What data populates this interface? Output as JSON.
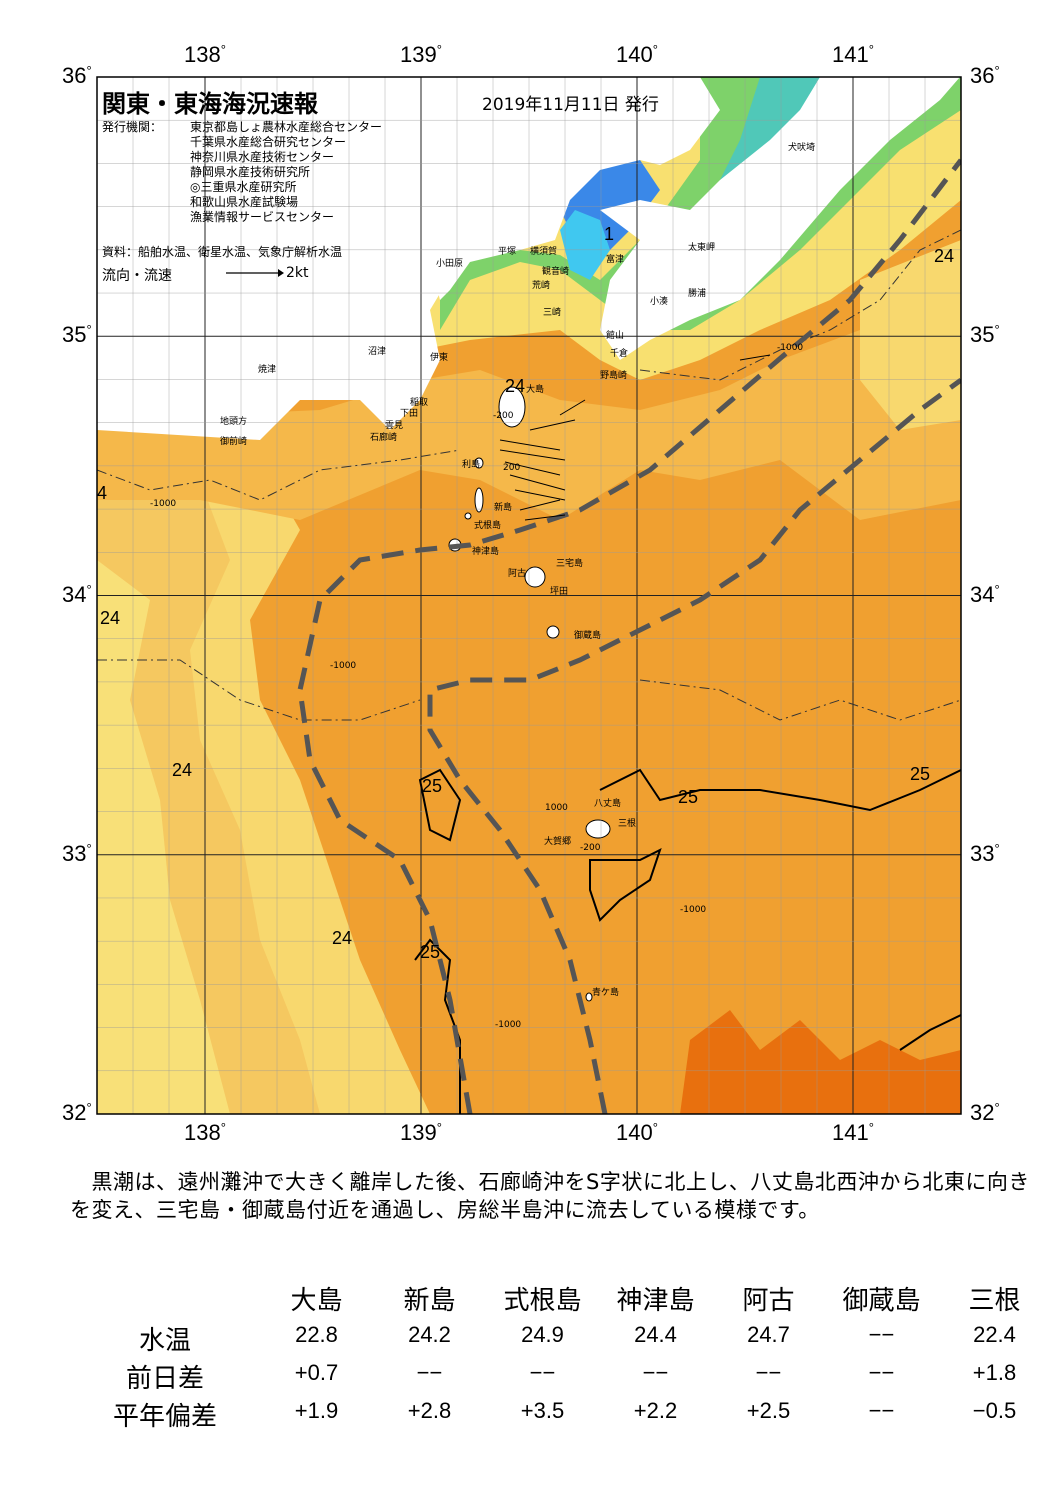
{
  "title": "関東・東海海況速報",
  "issue_date": "2019年11月11日 発行",
  "issuer_label": "発行機関：",
  "issuers": [
    "東京都島しょ農林水産総合センター",
    "千葉県水産総合研究センター",
    "神奈川県水産技術センター",
    "静岡県水産技術研究所",
    "◎三重県水産研究所",
    "和歌山県水産試験場",
    "漁業情報サービスセンター"
  ],
  "source": "資料：船舶水温、衛星水温、気象庁解析水温",
  "current_label": "流向・流速",
  "current_scale": "2kt",
  "axes": {
    "lon_labels": [
      "138",
      "139",
      "140",
      "141"
    ],
    "lat_labels": [
      "36",
      "35",
      "34",
      "33",
      "32"
    ],
    "degree": "°",
    "lon_range": [
      137.5,
      141.5
    ],
    "lat_range": [
      32,
      36
    ]
  },
  "place_labels": {
    "inubozaki": "犬吠埼",
    "taitomisaki": "太東岬",
    "katsuura": "勝浦",
    "kominato": "小湊",
    "futtsu": "富津",
    "tateyama": "館山",
    "chikura": "千倉",
    "nojimazaki": "野島崎",
    "odawara": "小田原",
    "hiratsuka": "平塚",
    "yokosuka": "横須賀",
    "kannonzaki": "観音崎",
    "arasaki": "荒崎",
    "misaki": "三崎",
    "numazu": "沼津",
    "ito": "伊東",
    "yaizu": "焼津",
    "inatori": "稲取",
    "shimoda": "下田",
    "kumomi": "雲見",
    "irozaki": "石廊崎",
    "jitokata": "地頭方",
    "omaezaki": "御前崎",
    "oshima": "大島",
    "toshima": "利島",
    "niijima": "新島",
    "shikinejima": "式根島",
    "kozushima": "神津島",
    "miyakejima": "三宅島",
    "ako": "阿古",
    "tsubota": "坪田",
    "mikurajima": "御蔵島",
    "hachijojima": "八丈島",
    "mitsune": "三根",
    "okago": "大賀郷",
    "aogashima": "青ケ島"
  },
  "isotherm_labels": {
    "t24_a": "24",
    "t24_b": "24",
    "t24_c": "24",
    "t24_d": "24",
    "t24_e": "24",
    "t24_f": "4",
    "t25_a": "25",
    "t25_b": "25",
    "t25_c": "25",
    "t25_d": "25",
    "t1": "1"
  },
  "depth_labels": {
    "d200": "-200",
    "d1000": "-1000",
    "d200p": "200",
    "d1000p": "1000"
  },
  "colors": {
    "deep_orange": "#e8700e",
    "orange": "#f0a030",
    "light_orange": "#f5b84a",
    "yellow": "#f8d86e",
    "pale_yellow": "#f8ea80",
    "green": "#7ed26a",
    "teal": "#4ed0b0",
    "cyan": "#40c8f0",
    "blue": "#3a88e8",
    "kuroshio_line": "#555555"
  },
  "description": "　黒潮は、遠州灘沖で大きく離岸した後、石廊崎沖をS字状に北上し、八丈島北西沖から北東に向きを変え、三宅島・御蔵島付近を通過し、房総半島沖に流去している模様です。",
  "table": {
    "columns": [
      "大島",
      "新島",
      "式根島",
      "神津島",
      "阿古",
      "御蔵島",
      "三根"
    ],
    "rows": [
      {
        "label": "水温",
        "values": [
          "22.8",
          "24.2",
          "24.9",
          "24.4",
          "24.7",
          "−−",
          "22.4"
        ]
      },
      {
        "label": "前日差",
        "values": [
          "+0.7",
          "−−",
          "−−",
          "−−",
          "−−",
          "−−",
          "+1.8"
        ]
      },
      {
        "label": "平年偏差",
        "values": [
          "+1.9",
          "+2.8",
          "+3.5",
          "+2.2",
          "+2.5",
          "−−",
          "−0.5"
        ]
      }
    ]
  }
}
